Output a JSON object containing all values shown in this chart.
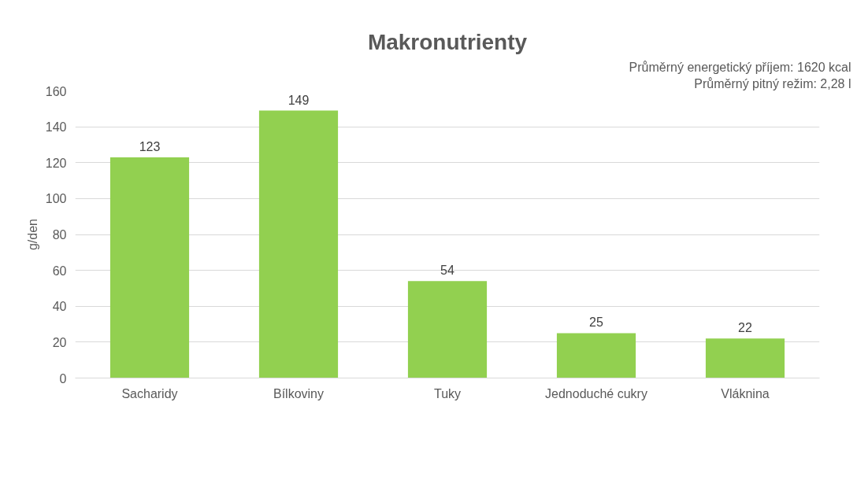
{
  "chart_data": {
    "type": "bar",
    "title": "Makronutrienty",
    "ylabel": "g/den",
    "categories": [
      "Sacharidy",
      "Bílkoviny",
      "Tuky",
      "Jednoduché cukry",
      "Vláknina"
    ],
    "values": [
      123,
      149,
      54,
      25,
      22
    ],
    "color": "#92d050",
    "ylim": [
      0,
      160
    ],
    "yticks": [
      0,
      20,
      40,
      60,
      80,
      100,
      120,
      140,
      160
    ],
    "grid": "y",
    "data_labels": true,
    "annotations": [
      "Průměrný energetický příjem: 1620 kcal",
      "Průměrný pitný režim: 2,28 l"
    ]
  }
}
